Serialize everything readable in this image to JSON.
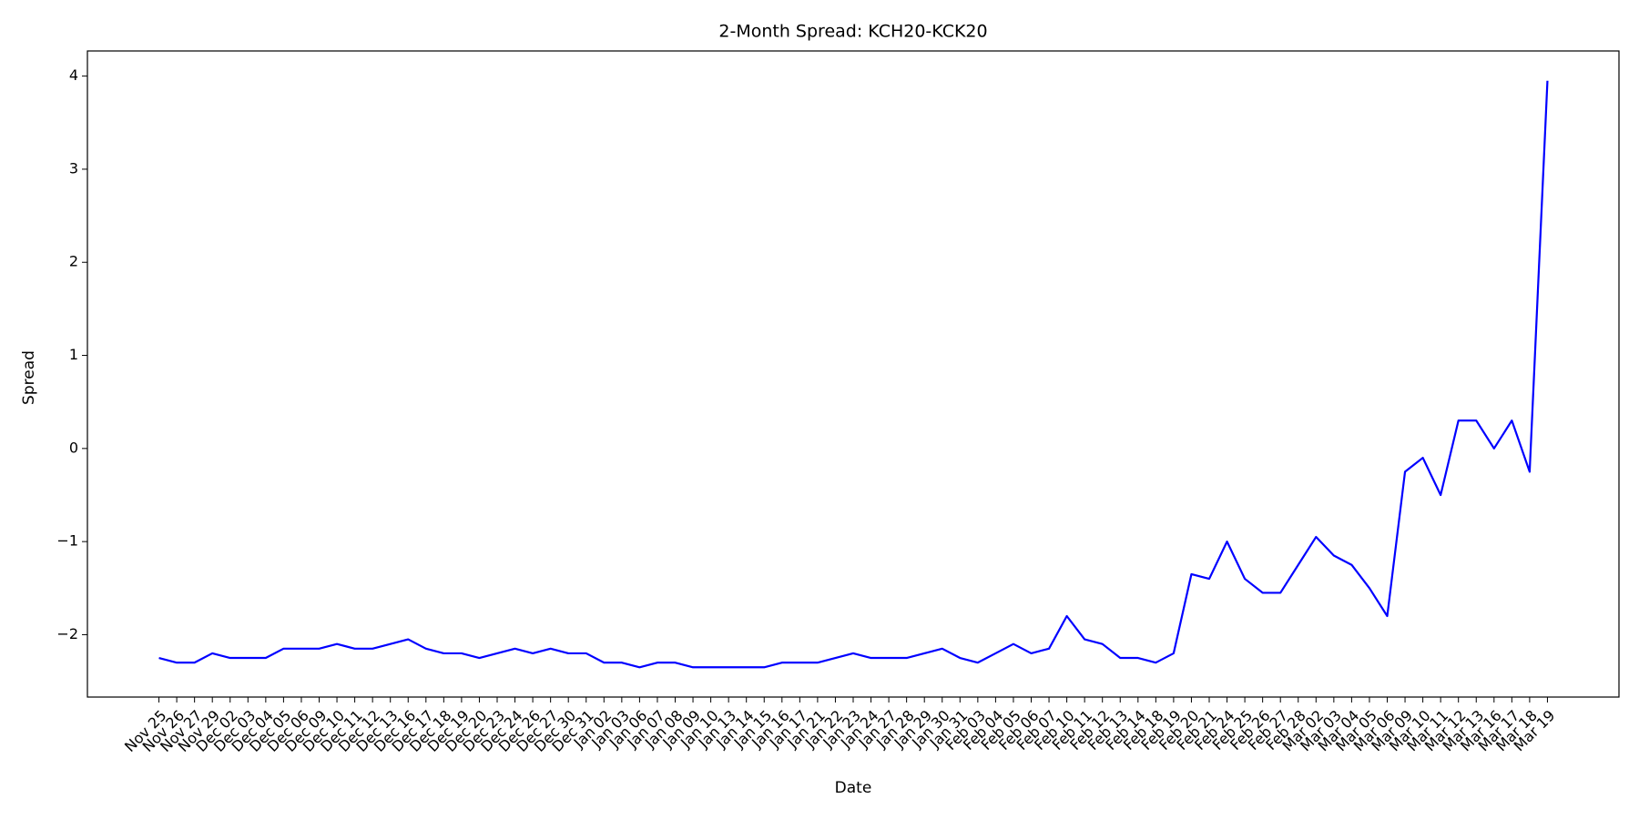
{
  "chart_data": {
    "type": "line",
    "title": "2-Month Spread: KCH20-KCK20",
    "xlabel": "Date",
    "ylabel": "Spread",
    "categories": [
      "Nov 25",
      "Nov 26",
      "Nov 27",
      "Nov 29",
      "Dec 02",
      "Dec 03",
      "Dec 04",
      "Dec 05",
      "Dec 06",
      "Dec 09",
      "Dec 10",
      "Dec 11",
      "Dec 12",
      "Dec 13",
      "Dec 16",
      "Dec 17",
      "Dec 18",
      "Dec 19",
      "Dec 20",
      "Dec 23",
      "Dec 24",
      "Dec 26",
      "Dec 27",
      "Dec 30",
      "Dec 31",
      "Jan 02",
      "Jan 03",
      "Jan 06",
      "Jan 07",
      "Jan 08",
      "Jan 09",
      "Jan 10",
      "Jan 13",
      "Jan 14",
      "Jan 15",
      "Jan 16",
      "Jan 17",
      "Jan 21",
      "Jan 22",
      "Jan 23",
      "Jan 24",
      "Jan 27",
      "Jan 28",
      "Jan 29",
      "Jan 30",
      "Jan 31",
      "Feb 03",
      "Feb 04",
      "Feb 05",
      "Feb 06",
      "Feb 07",
      "Feb 10",
      "Feb 11",
      "Feb 12",
      "Feb 13",
      "Feb 14",
      "Feb 18",
      "Feb 19",
      "Feb 20",
      "Feb 21",
      "Feb 24",
      "Feb 25",
      "Feb 26",
      "Feb 27",
      "Feb 28",
      "Mar 02",
      "Mar 03",
      "Mar 04",
      "Mar 05",
      "Mar 06",
      "Mar 09",
      "Mar 10",
      "Mar 11",
      "Mar 12",
      "Mar 13",
      "Mar 16",
      "Mar 17",
      "Mar 18",
      "Mar 19"
    ],
    "series": [
      {
        "color": "blue",
        "values": [
          -2.25,
          -2.3,
          -2.3,
          -2.2,
          -2.25,
          -2.25,
          -2.25,
          -2.15,
          -2.15,
          -2.15,
          -2.1,
          -2.15,
          -2.15,
          -2.1,
          -2.05,
          -2.15,
          -2.2,
          -2.2,
          -2.25,
          -2.2,
          -2.15,
          -2.2,
          -2.15,
          -2.2,
          -2.2,
          -2.3,
          -2.3,
          -2.35,
          -2.3,
          -2.3,
          -2.35,
          -2.35,
          -2.35,
          -2.35,
          -2.35,
          -2.3,
          -2.3,
          -2.3,
          -2.25,
          -2.2,
          -2.25,
          -2.25,
          -2.25,
          -2.2,
          -2.15,
          -2.25,
          -2.3,
          -2.2,
          -2.1,
          -2.2,
          -2.15,
          -1.8,
          -2.05,
          -2.1,
          -2.25,
          -2.25,
          -2.3,
          -2.2,
          -1.35,
          -1.4,
          -1.0,
          -1.4,
          -1.55,
          -1.55,
          -1.25,
          -0.95,
          -1.15,
          -1.25,
          -1.5,
          -1.8,
          -0.25,
          -0.1,
          -0.5,
          0.3,
          0.3,
          0.0,
          0.3,
          -0.25,
          3.95
        ]
      }
    ],
    "ylim": [
      -2.67,
      4.27
    ],
    "yticks": [
      {
        "value": -2,
        "label": "−2"
      },
      {
        "value": -1,
        "label": "−1"
      },
      0,
      1,
      2,
      3,
      4
    ]
  }
}
